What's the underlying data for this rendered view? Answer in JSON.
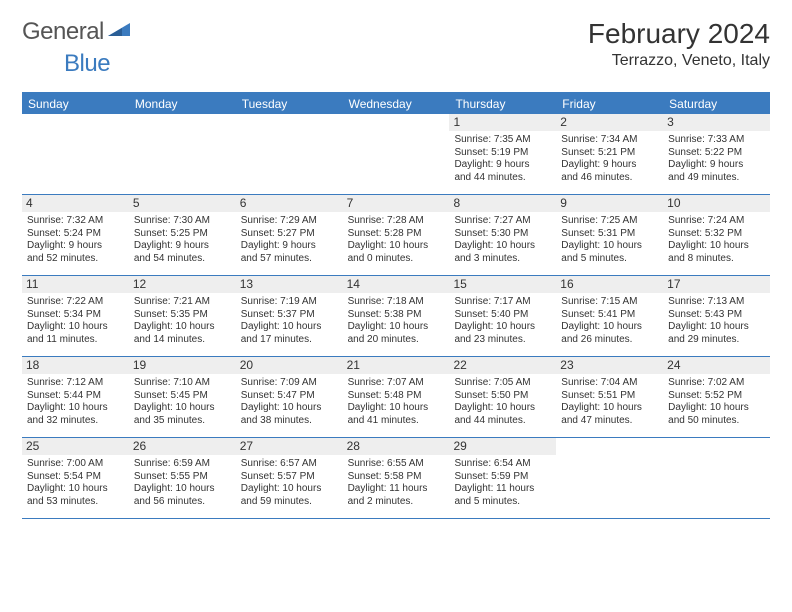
{
  "brand": {
    "name1": "General",
    "name2": "Blue"
  },
  "title": "February 2024",
  "location": "Terrazzo, Veneto, Italy",
  "colors": {
    "header_bg": "#3b7bbf",
    "header_text": "#ffffff",
    "daynum_bg": "#eeeeee",
    "rule": "#3b7bbf",
    "text": "#333333",
    "background": "#ffffff"
  },
  "typography": {
    "title_fontsize": 28,
    "location_fontsize": 16,
    "dow_fontsize": 12,
    "cell_fontsize": 10
  },
  "days_of_week": [
    "Sunday",
    "Monday",
    "Tuesday",
    "Wednesday",
    "Thursday",
    "Friday",
    "Saturday"
  ],
  "weeks": [
    [
      {
        "n": "",
        "sunrise": "",
        "sunset": "",
        "d1": "",
        "d2": ""
      },
      {
        "n": "",
        "sunrise": "",
        "sunset": "",
        "d1": "",
        "d2": ""
      },
      {
        "n": "",
        "sunrise": "",
        "sunset": "",
        "d1": "",
        "d2": ""
      },
      {
        "n": "",
        "sunrise": "",
        "sunset": "",
        "d1": "",
        "d2": ""
      },
      {
        "n": "1",
        "sunrise": "Sunrise: 7:35 AM",
        "sunset": "Sunset: 5:19 PM",
        "d1": "Daylight: 9 hours",
        "d2": "and 44 minutes."
      },
      {
        "n": "2",
        "sunrise": "Sunrise: 7:34 AM",
        "sunset": "Sunset: 5:21 PM",
        "d1": "Daylight: 9 hours",
        "d2": "and 46 minutes."
      },
      {
        "n": "3",
        "sunrise": "Sunrise: 7:33 AM",
        "sunset": "Sunset: 5:22 PM",
        "d1": "Daylight: 9 hours",
        "d2": "and 49 minutes."
      }
    ],
    [
      {
        "n": "4",
        "sunrise": "Sunrise: 7:32 AM",
        "sunset": "Sunset: 5:24 PM",
        "d1": "Daylight: 9 hours",
        "d2": "and 52 minutes."
      },
      {
        "n": "5",
        "sunrise": "Sunrise: 7:30 AM",
        "sunset": "Sunset: 5:25 PM",
        "d1": "Daylight: 9 hours",
        "d2": "and 54 minutes."
      },
      {
        "n": "6",
        "sunrise": "Sunrise: 7:29 AM",
        "sunset": "Sunset: 5:27 PM",
        "d1": "Daylight: 9 hours",
        "d2": "and 57 minutes."
      },
      {
        "n": "7",
        "sunrise": "Sunrise: 7:28 AM",
        "sunset": "Sunset: 5:28 PM",
        "d1": "Daylight: 10 hours",
        "d2": "and 0 minutes."
      },
      {
        "n": "8",
        "sunrise": "Sunrise: 7:27 AM",
        "sunset": "Sunset: 5:30 PM",
        "d1": "Daylight: 10 hours",
        "d2": "and 3 minutes."
      },
      {
        "n": "9",
        "sunrise": "Sunrise: 7:25 AM",
        "sunset": "Sunset: 5:31 PM",
        "d1": "Daylight: 10 hours",
        "d2": "and 5 minutes."
      },
      {
        "n": "10",
        "sunrise": "Sunrise: 7:24 AM",
        "sunset": "Sunset: 5:32 PM",
        "d1": "Daylight: 10 hours",
        "d2": "and 8 minutes."
      }
    ],
    [
      {
        "n": "11",
        "sunrise": "Sunrise: 7:22 AM",
        "sunset": "Sunset: 5:34 PM",
        "d1": "Daylight: 10 hours",
        "d2": "and 11 minutes."
      },
      {
        "n": "12",
        "sunrise": "Sunrise: 7:21 AM",
        "sunset": "Sunset: 5:35 PM",
        "d1": "Daylight: 10 hours",
        "d2": "and 14 minutes."
      },
      {
        "n": "13",
        "sunrise": "Sunrise: 7:19 AM",
        "sunset": "Sunset: 5:37 PM",
        "d1": "Daylight: 10 hours",
        "d2": "and 17 minutes."
      },
      {
        "n": "14",
        "sunrise": "Sunrise: 7:18 AM",
        "sunset": "Sunset: 5:38 PM",
        "d1": "Daylight: 10 hours",
        "d2": "and 20 minutes."
      },
      {
        "n": "15",
        "sunrise": "Sunrise: 7:17 AM",
        "sunset": "Sunset: 5:40 PM",
        "d1": "Daylight: 10 hours",
        "d2": "and 23 minutes."
      },
      {
        "n": "16",
        "sunrise": "Sunrise: 7:15 AM",
        "sunset": "Sunset: 5:41 PM",
        "d1": "Daylight: 10 hours",
        "d2": "and 26 minutes."
      },
      {
        "n": "17",
        "sunrise": "Sunrise: 7:13 AM",
        "sunset": "Sunset: 5:43 PM",
        "d1": "Daylight: 10 hours",
        "d2": "and 29 minutes."
      }
    ],
    [
      {
        "n": "18",
        "sunrise": "Sunrise: 7:12 AM",
        "sunset": "Sunset: 5:44 PM",
        "d1": "Daylight: 10 hours",
        "d2": "and 32 minutes."
      },
      {
        "n": "19",
        "sunrise": "Sunrise: 7:10 AM",
        "sunset": "Sunset: 5:45 PM",
        "d1": "Daylight: 10 hours",
        "d2": "and 35 minutes."
      },
      {
        "n": "20",
        "sunrise": "Sunrise: 7:09 AM",
        "sunset": "Sunset: 5:47 PM",
        "d1": "Daylight: 10 hours",
        "d2": "and 38 minutes."
      },
      {
        "n": "21",
        "sunrise": "Sunrise: 7:07 AM",
        "sunset": "Sunset: 5:48 PM",
        "d1": "Daylight: 10 hours",
        "d2": "and 41 minutes."
      },
      {
        "n": "22",
        "sunrise": "Sunrise: 7:05 AM",
        "sunset": "Sunset: 5:50 PM",
        "d1": "Daylight: 10 hours",
        "d2": "and 44 minutes."
      },
      {
        "n": "23",
        "sunrise": "Sunrise: 7:04 AM",
        "sunset": "Sunset: 5:51 PM",
        "d1": "Daylight: 10 hours",
        "d2": "and 47 minutes."
      },
      {
        "n": "24",
        "sunrise": "Sunrise: 7:02 AM",
        "sunset": "Sunset: 5:52 PM",
        "d1": "Daylight: 10 hours",
        "d2": "and 50 minutes."
      }
    ],
    [
      {
        "n": "25",
        "sunrise": "Sunrise: 7:00 AM",
        "sunset": "Sunset: 5:54 PM",
        "d1": "Daylight: 10 hours",
        "d2": "and 53 minutes."
      },
      {
        "n": "26",
        "sunrise": "Sunrise: 6:59 AM",
        "sunset": "Sunset: 5:55 PM",
        "d1": "Daylight: 10 hours",
        "d2": "and 56 minutes."
      },
      {
        "n": "27",
        "sunrise": "Sunrise: 6:57 AM",
        "sunset": "Sunset: 5:57 PM",
        "d1": "Daylight: 10 hours",
        "d2": "and 59 minutes."
      },
      {
        "n": "28",
        "sunrise": "Sunrise: 6:55 AM",
        "sunset": "Sunset: 5:58 PM",
        "d1": "Daylight: 11 hours",
        "d2": "and 2 minutes."
      },
      {
        "n": "29",
        "sunrise": "Sunrise: 6:54 AM",
        "sunset": "Sunset: 5:59 PM",
        "d1": "Daylight: 11 hours",
        "d2": "and 5 minutes."
      },
      {
        "n": "",
        "sunrise": "",
        "sunset": "",
        "d1": "",
        "d2": ""
      },
      {
        "n": "",
        "sunrise": "",
        "sunset": "",
        "d1": "",
        "d2": ""
      }
    ]
  ]
}
